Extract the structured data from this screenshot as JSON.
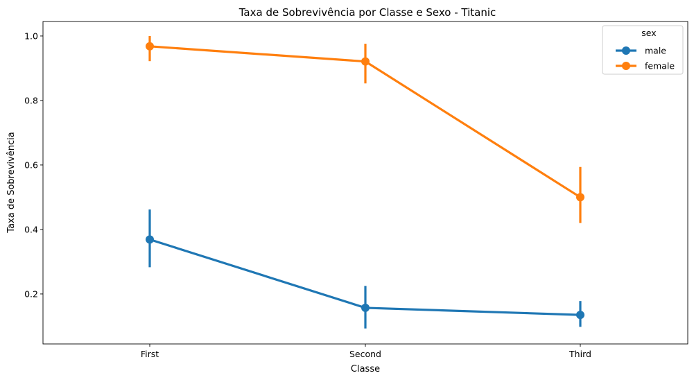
{
  "chart_data": {
    "type": "line",
    "title": "Taxa de Sobrevivência por Classe e Sexo - Titanic",
    "xlabel": "Classe",
    "ylabel": "Taxa de Sobrevivência",
    "categories": [
      "First",
      "Second",
      "Third"
    ],
    "ylim": [
      0.045,
      1.045
    ],
    "yticks": [
      0.2,
      0.4,
      0.6,
      0.8,
      1.0
    ],
    "ytick_labels": [
      "0.2",
      "0.4",
      "0.6",
      "0.8",
      "1.0"
    ],
    "grid": false,
    "legend": {
      "title": "sex",
      "placement": "top-right"
    },
    "series": [
      {
        "name": "male",
        "color": "#1f77b4",
        "values": [
          0.369,
          0.157,
          0.135
        ],
        "ci_low": [
          0.283,
          0.093,
          0.098
        ],
        "ci_high": [
          0.462,
          0.225,
          0.178
        ]
      },
      {
        "name": "female",
        "color": "#ff7f0e",
        "values": [
          0.968,
          0.921,
          0.5
        ],
        "ci_low": [
          0.922,
          0.853,
          0.42
        ],
        "ci_high": [
          1.0,
          0.976,
          0.594
        ]
      }
    ]
  }
}
